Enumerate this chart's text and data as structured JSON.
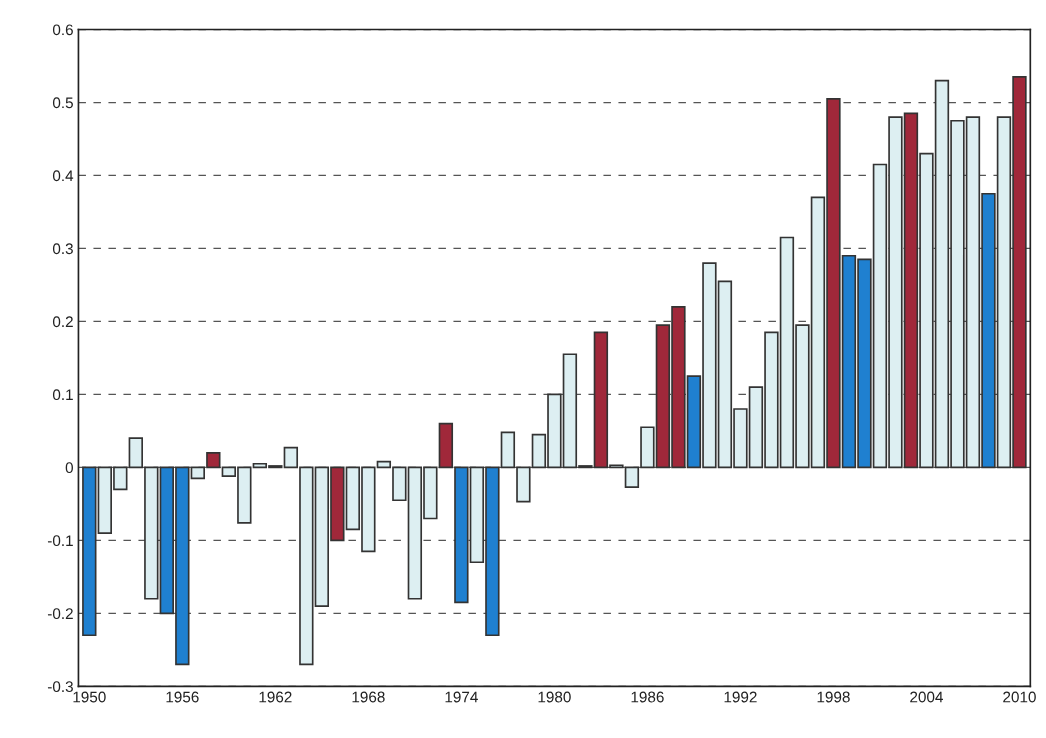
{
  "chart_data": {
    "type": "bar",
    "x": [
      1950,
      1951,
      1952,
      1953,
      1954,
      1955,
      1956,
      1957,
      1958,
      1959,
      1960,
      1961,
      1962,
      1963,
      1964,
      1965,
      1966,
      1967,
      1968,
      1969,
      1970,
      1971,
      1972,
      1973,
      1974,
      1975,
      1976,
      1977,
      1978,
      1979,
      1980,
      1981,
      1982,
      1983,
      1984,
      1985,
      1986,
      1987,
      1988,
      1989,
      1990,
      1991,
      1992,
      1993,
      1994,
      1995,
      1996,
      1997,
      1998,
      1999,
      2000,
      2001,
      2002,
      2003,
      2004,
      2005,
      2006,
      2007,
      2008,
      2009,
      2010
    ],
    "values": [
      -0.23,
      -0.09,
      -0.03,
      0.04,
      -0.18,
      -0.2,
      -0.27,
      -0.015,
      0.02,
      -0.012,
      -0.076,
      0.005,
      0.002,
      0.027,
      -0.27,
      -0.19,
      -0.1,
      -0.085,
      -0.115,
      0.008,
      -0.045,
      -0.18,
      -0.07,
      0.06,
      -0.185,
      -0.13,
      -0.23,
      0.048,
      -0.047,
      0.045,
      0.1,
      0.155,
      0.002,
      0.185,
      0.003,
      -0.027,
      0.055,
      0.195,
      0.22,
      0.125,
      0.28,
      0.255,
      0.08,
      0.11,
      0.185,
      0.315,
      0.195,
      0.37,
      0.505,
      0.29,
      0.285,
      0.415,
      0.48,
      0.485,
      0.43,
      0.53,
      0.475,
      0.48,
      0.375,
      0.48,
      0.535
    ],
    "colors": [
      "#1f80d0",
      "#ddeff2",
      "#ddeff2",
      "#ddeff2",
      "#ddeff2",
      "#1f80d0",
      "#1f80d0",
      "#ddeff2",
      "#a0283a",
      "#ddeff2",
      "#ddeff2",
      "#ddeff2",
      "#ddeff2",
      "#ddeff2",
      "#ddeff2",
      "#ddeff2",
      "#a0283a",
      "#ddeff2",
      "#ddeff2",
      "#ddeff2",
      "#ddeff2",
      "#ddeff2",
      "#ddeff2",
      "#a0283a",
      "#1f80d0",
      "#ddeff2",
      "#1f80d0",
      "#ddeff2",
      "#ddeff2",
      "#ddeff2",
      "#ddeff2",
      "#ddeff2",
      "#ddeff2",
      "#a0283a",
      "#ddeff2",
      "#ddeff2",
      "#ddeff2",
      "#a0283a",
      "#a0283a",
      "#1f80d0",
      "#ddeff2",
      "#ddeff2",
      "#ddeff2",
      "#ddeff2",
      "#ddeff2",
      "#ddeff2",
      "#ddeff2",
      "#ddeff2",
      "#a0283a",
      "#1f80d0",
      "#1f80d0",
      "#ddeff2",
      "#ddeff2",
      "#a0283a",
      "#ddeff2",
      "#ddeff2",
      "#ddeff2",
      "#ddeff2",
      "#1f80d0",
      "#ddeff2",
      "#a0283a"
    ],
    "xlim": [
      1949.3,
      2010.7
    ],
    "xticks": [
      1950,
      1956,
      1962,
      1968,
      1974,
      1980,
      1986,
      1992,
      1998,
      2004,
      2010
    ],
    "ylim": [
      -0.3,
      0.6
    ],
    "yticks": [
      -0.3,
      -0.2,
      -0.1,
      0,
      0.1,
      0.2,
      0.3,
      0.4,
      0.5,
      0.6
    ],
    "grid": "y",
    "line_style": "dashed"
  }
}
